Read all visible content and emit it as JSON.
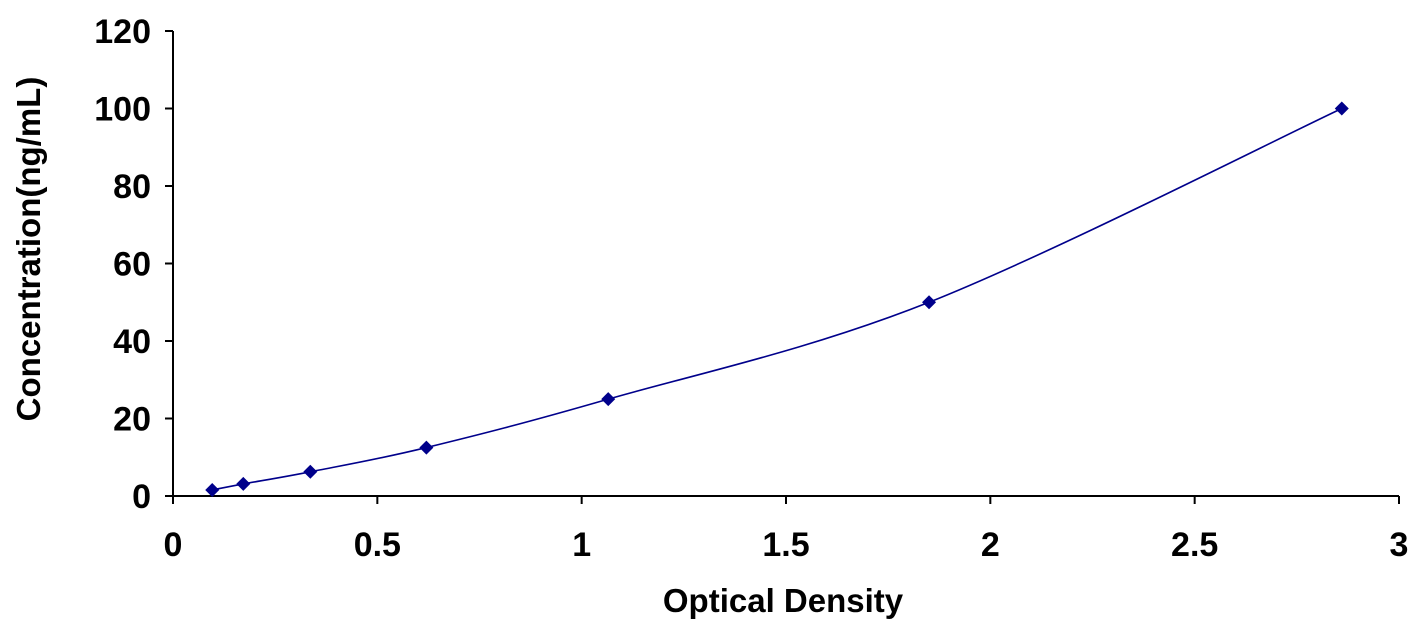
{
  "chart_data": {
    "type": "scatter",
    "title": "",
    "xlabel": "Optical Density",
    "ylabel": "Concentration(ng/mL)",
    "xlim": [
      0,
      3
    ],
    "ylim": [
      0,
      120
    ],
    "x_ticks": [
      "0",
      "0.5",
      "1",
      "1.5",
      "2",
      "2.5",
      "3"
    ],
    "y_ticks": [
      "0",
      "20",
      "40",
      "60",
      "80",
      "100",
      "120"
    ],
    "grid": false,
    "legend": "none",
    "series": [
      {
        "marker": "diamond",
        "line": "smooth",
        "color": "#00008b",
        "points": [
          {
            "x": 0.096,
            "y": 1.56
          },
          {
            "x": 0.172,
            "y": 3.12
          },
          {
            "x": 0.336,
            "y": 6.25
          },
          {
            "x": 0.62,
            "y": 12.5
          },
          {
            "x": 1.065,
            "y": 25
          },
          {
            "x": 1.85,
            "y": 50
          },
          {
            "x": 2.86,
            "y": 100
          }
        ]
      }
    ]
  }
}
